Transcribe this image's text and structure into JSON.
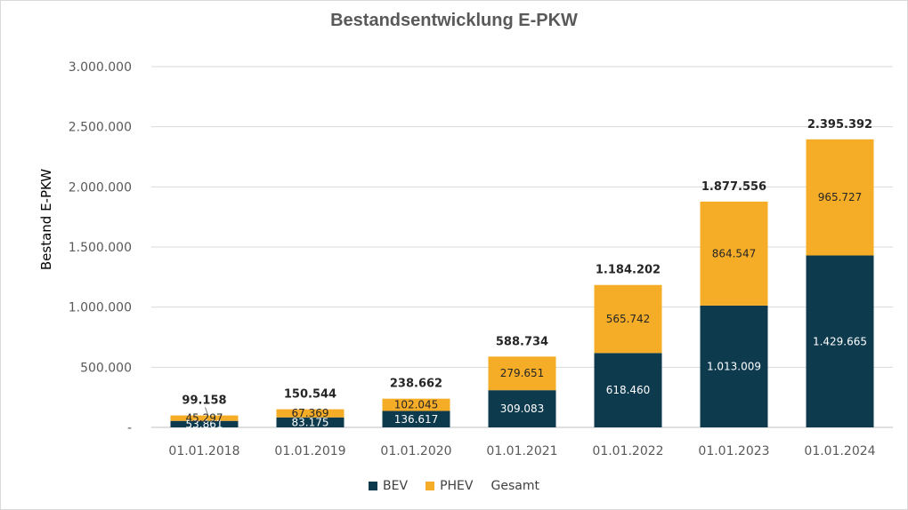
{
  "colors": {
    "bev": "#0e3a4e",
    "phev": "#f5ac27",
    "grid": "#d9d9d9",
    "axis": "#bfbfbf"
  },
  "chart_data": {
    "type": "bar",
    "stacked": true,
    "title": "Bestandsentwicklung E-PKW",
    "ylabel": "Bestand E-PKW",
    "xlabel": "",
    "ylim": [
      0,
      3000000
    ],
    "yticks": [
      0,
      500000,
      1000000,
      1500000,
      2000000,
      2500000,
      3000000
    ],
    "ytick_labels": [
      "-",
      "500.000",
      "1.000.000",
      "1.500.000",
      "2.000.000",
      "2.500.000",
      "3.000.000"
    ],
    "categories": [
      "01.01.2018",
      "01.01.2019",
      "01.01.2020",
      "01.01.2021",
      "01.01.2022",
      "01.01.2023",
      "01.01.2024"
    ],
    "series": [
      {
        "name": "BEV",
        "values": [
          53861,
          83175,
          136617,
          309083,
          618460,
          1013009,
          1429665
        ],
        "labels": [
          "53.861",
          "83.175",
          "136.617",
          "309.083",
          "618.460",
          "1.013.009",
          "1.429.665"
        ]
      },
      {
        "name": "PHEV",
        "values": [
          45297,
          67369,
          102045,
          279651,
          565742,
          864547,
          965727
        ],
        "labels": [
          "45.297",
          "67.369",
          "102.045",
          "279.651",
          "565.742",
          "864.547",
          "965.727"
        ]
      }
    ],
    "totals": {
      "name": "Gesamt",
      "values": [
        99158,
        150544,
        238662,
        588734,
        1184202,
        1877556,
        2395392
      ],
      "labels": [
        "99.158",
        "150.544",
        "238.662",
        "588.734",
        "1.184.202",
        "1.877.556",
        "2.395.392"
      ]
    },
    "grid": true,
    "legend": [
      "BEV",
      "PHEV",
      "Gesamt"
    ],
    "legend_position": "bottom"
  }
}
